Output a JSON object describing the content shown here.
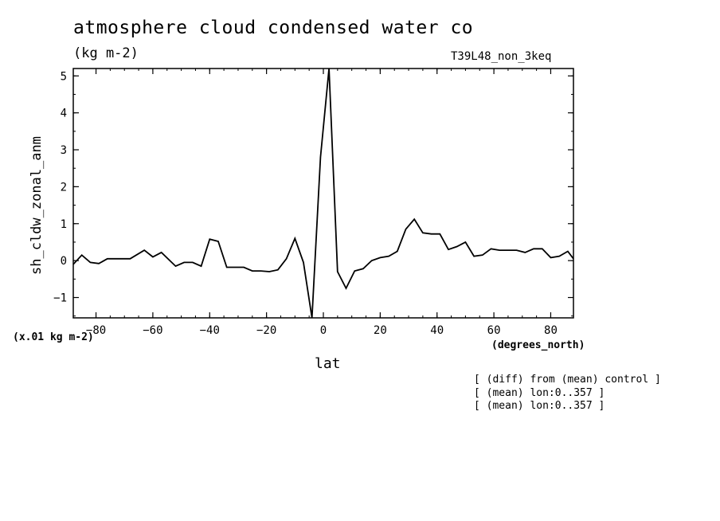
{
  "header": {
    "title": "atmosphere cloud condensed water co",
    "units": "(kg m-2)",
    "experiment": "T39L48_non_3keq"
  },
  "axes": {
    "scale_note": "(x.01 kg m-2)",
    "x_units": "(degrees_north)"
  },
  "notes": [
    "[ (diff) from (mean) control ]",
    "[ (mean) lon:0..357 ]",
    "[ (mean) lon:0..357 ]"
  ],
  "chart_data": {
    "type": "line",
    "title": "atmosphere cloud condensed water co",
    "xlabel": "lat",
    "ylabel": "sh_cldw_zonal_anm",
    "xlim": [
      -88,
      88
    ],
    "ylim": [
      -1.55,
      5.2
    ],
    "xticks": [
      -80,
      -60,
      -40,
      -20,
      0,
      20,
      40,
      60,
      80
    ],
    "yticks": [
      -1,
      0,
      1,
      2,
      3,
      4,
      5
    ],
    "xtick_labels": [
      "-80",
      "-60",
      "-40",
      "-20",
      "0",
      "20",
      "40",
      "60",
      "80"
    ],
    "ytick_labels": [
      "-1",
      "0",
      "1",
      "2",
      "3",
      "4",
      "5"
    ],
    "grid": false,
    "series": [
      {
        "x": [
          -88,
          -85,
          -82,
          -79,
          -76,
          -73,
          -68,
          -63,
          -60,
          -57,
          -52,
          -49,
          -46,
          -43,
          -40,
          -37,
          -34,
          -31,
          -28,
          -25,
          -22,
          -19,
          -16,
          -13,
          -10,
          -7,
          -4,
          -1,
          2,
          5,
          8,
          11,
          14,
          17,
          20,
          23,
          26,
          29,
          32,
          35,
          38,
          41,
          44,
          47,
          50,
          53,
          56,
          59,
          62,
          65,
          68,
          71,
          74,
          77,
          80,
          83,
          86,
          88
        ],
        "y": [
          -0.1,
          0.15,
          -0.05,
          -0.08,
          0.05,
          0.05,
          0.05,
          0.28,
          0.1,
          0.22,
          -0.15,
          -0.05,
          -0.05,
          -0.15,
          0.58,
          0.52,
          -0.18,
          -0.18,
          -0.18,
          -0.28,
          -0.28,
          -0.3,
          -0.25,
          0.05,
          0.6,
          -0.05,
          -1.55,
          2.8,
          5.2,
          -0.3,
          -0.75,
          -0.28,
          -0.22,
          0.0,
          0.08,
          0.12,
          0.25,
          0.85,
          1.12,
          0.75,
          0.72,
          0.72,
          0.3,
          0.38,
          0.5,
          0.12,
          0.15,
          0.32,
          0.28,
          0.28,
          0.28,
          0.22,
          0.32,
          0.32,
          0.08,
          0.12,
          0.25,
          0.05
        ]
      }
    ]
  }
}
